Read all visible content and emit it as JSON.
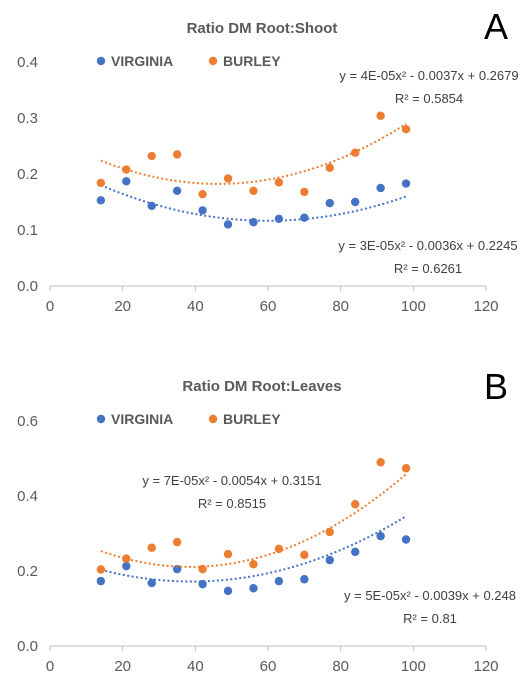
{
  "chart_data": [
    {
      "type": "scatter",
      "panel_label": "A",
      "title": "Ratio DM Root:Shoot",
      "xlabel": "",
      "ylabel": "",
      "xlim": [
        0,
        120
      ],
      "ylim": [
        0,
        0.4
      ],
      "x_ticks": [
        "0",
        "20",
        "40",
        "60",
        "80",
        "100",
        "120"
      ],
      "y_ticks": [
        "0.0",
        "0.1",
        "0.2",
        "0.3",
        "0.4"
      ],
      "grid": false,
      "legend": "top-left",
      "series": [
        {
          "name": "VIRGINIA",
          "color": "#4472C4",
          "x": [
            14,
            21,
            28,
            35,
            42,
            49,
            56,
            63,
            70,
            77,
            84,
            91,
            98
          ],
          "y": [
            0.153,
            0.187,
            0.143,
            0.17,
            0.135,
            0.11,
            0.114,
            0.12,
            0.122,
            0.148,
            0.15,
            0.175,
            0.183
          ],
          "trendline": {
            "coeffs": [
              3e-05,
              -0.0036,
              0.2245
            ],
            "equation": "y = 3E-05x² - 0.0036x + 0.2245",
            "r2": "R² = 0.6261"
          }
        },
        {
          "name": "BURLEY",
          "color": "#ED7D31",
          "x": [
            14,
            21,
            28,
            35,
            42,
            49,
            56,
            63,
            70,
            77,
            84,
            91,
            98
          ],
          "y": [
            0.184,
            0.208,
            0.232,
            0.235,
            0.164,
            0.192,
            0.17,
            0.185,
            0.168,
            0.211,
            0.238,
            0.304,
            0.28
          ],
          "trendline": {
            "coeffs": [
              4e-05,
              -0.0037,
              0.2679
            ],
            "equation": "y = 4E-05x² - 0.0037x + 0.2679",
            "r2": "R² = 0.5854"
          }
        }
      ]
    },
    {
      "type": "scatter",
      "panel_label": "B",
      "title": "Ratio DM Root:Leaves",
      "xlabel": "",
      "ylabel": "",
      "xlim": [
        0,
        120
      ],
      "ylim": [
        0,
        0.6
      ],
      "x_ticks": [
        "0",
        "20",
        "40",
        "60",
        "80",
        "100",
        "120"
      ],
      "y_ticks": [
        "0.0",
        "0.2",
        "0.4",
        "0.6"
      ],
      "grid": false,
      "legend": "top-left",
      "series": [
        {
          "name": "VIRGINIA",
          "color": "#4472C4",
          "x": [
            14,
            21,
            28,
            35,
            42,
            49,
            56,
            63,
            70,
            77,
            84,
            91,
            98
          ],
          "y": [
            0.173,
            0.213,
            0.168,
            0.205,
            0.165,
            0.147,
            0.154,
            0.173,
            0.178,
            0.229,
            0.251,
            0.293,
            0.284
          ],
          "trendline": {
            "coeffs": [
              5e-05,
              -0.0039,
              0.248
            ],
            "equation": "y = 5E-05x² - 0.0039x + 0.248",
            "r2": "R² = 0.81"
          }
        },
        {
          "name": "BURLEY",
          "color": "#ED7D31",
          "x": [
            14,
            21,
            28,
            35,
            42,
            49,
            56,
            63,
            70,
            77,
            84,
            91,
            98
          ],
          "y": [
            0.204,
            0.233,
            0.262,
            0.277,
            0.205,
            0.245,
            0.218,
            0.259,
            0.243,
            0.304,
            0.378,
            0.49,
            0.474
          ],
          "trendline": {
            "coeffs": [
              7e-05,
              -0.0054,
              0.3151
            ],
            "equation": "y = 7E-05x² - 0.0054x + 0.3151",
            "r2": "R² = 0.8515"
          }
        }
      ]
    }
  ]
}
